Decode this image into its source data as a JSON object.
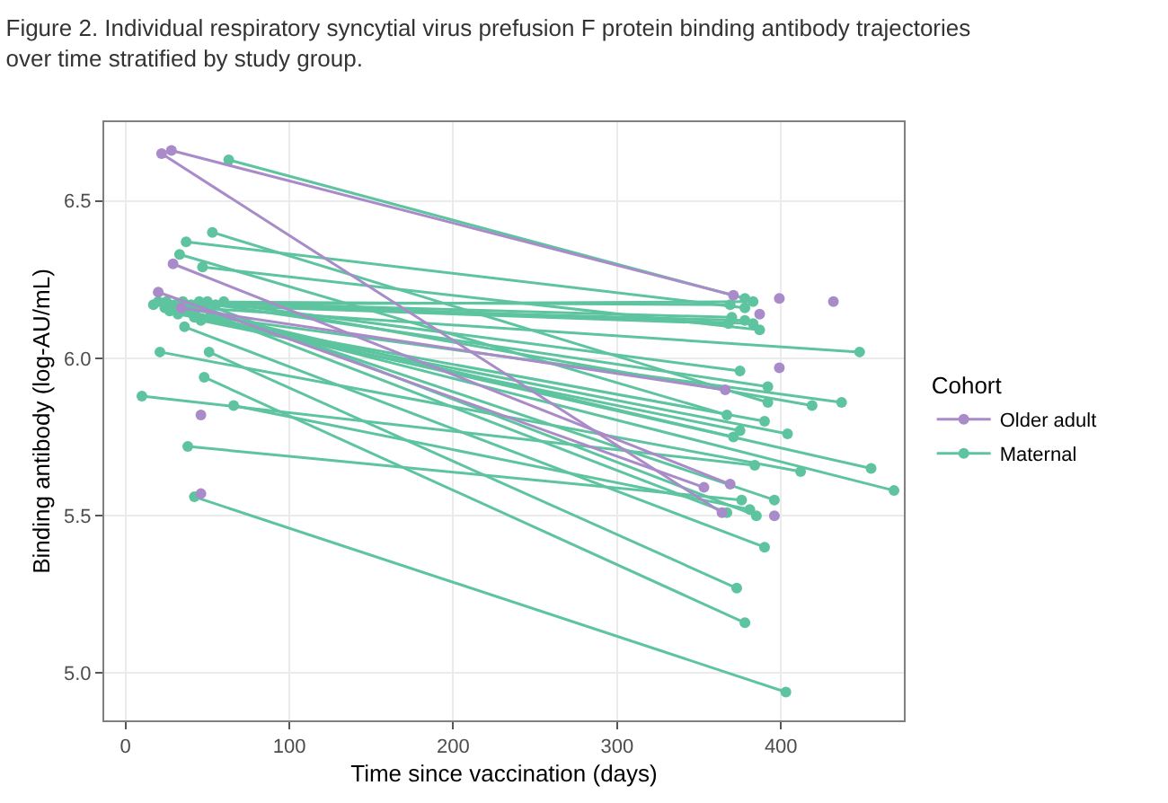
{
  "chart_data": {
    "type": "line",
    "title": "Figure 2. Individual respiratory syncytial virus prefusion F protein binding antibody trajectories\nover time stratified by study group.",
    "xlabel": "Time since vaccination (days)",
    "ylabel": "Binding antibody (log-AU/mL)",
    "legend_title": "Cohort",
    "xlim": [
      -13,
      475
    ],
    "ylim": [
      4.85,
      6.75
    ],
    "xticks": [
      0,
      100,
      200,
      300,
      400
    ],
    "yticks": [
      {
        "value": 5,
        "label": "5.0"
      },
      {
        "value": 5.5,
        "label": "5.5"
      },
      {
        "value": 6,
        "label": "6.0"
      },
      {
        "value": 6.5,
        "label": "6.5"
      }
    ],
    "grid": true,
    "legend": "right",
    "marker": "circle",
    "line_style": "solid",
    "series": [
      {
        "name": "Older adult",
        "color": "#a98bc9",
        "x": [
          22,
          364,
          null,
          28,
          371,
          null,
          29,
          369,
          null,
          20,
          353,
          null,
          34,
          366,
          null,
          46,
          null,
          46,
          null,
          399,
          null,
          432,
          null,
          387,
          null,
          399,
          null,
          396
        ],
        "values": [
          6.65,
          5.51,
          null,
          6.66,
          6.2,
          null,
          6.3,
          5.6,
          null,
          6.21,
          5.59,
          null,
          6.16,
          5.9,
          null,
          5.82,
          null,
          5.57,
          null,
          6.19,
          null,
          6.18,
          null,
          6.14,
          null,
          5.97,
          null,
          5.5
        ]
      },
      {
        "name": "Maternal",
        "color": "#5ec4a0",
        "x": [
          63,
          378,
          null,
          53,
          392,
          null,
          37,
          378,
          null,
          33,
          367,
          null,
          47,
          387,
          null,
          17,
          383,
          null,
          20,
          369,
          null,
          25,
          370,
          null,
          30,
          378,
          null,
          35,
          383,
          null,
          40,
          368,
          null,
          44,
          448,
          null,
          50,
          375,
          null,
          55,
          392,
          null,
          60,
          419,
          null,
          27,
          437,
          null,
          32,
          390,
          null,
          42,
          404,
          null,
          46,
          375,
          null,
          52,
          371,
          null,
          24,
          455,
          null,
          38,
          469,
          null,
          48,
          396,
          null,
          57,
          367,
          null,
          36,
          390,
          null,
          21,
          412,
          null,
          51,
          373,
          null,
          48,
          378,
          null,
          10,
          384,
          null,
          66,
          381,
          null,
          38,
          376,
          null,
          42,
          403,
          null,
          45,
          385
        ],
        "values": [
          6.63,
          6.19,
          null,
          6.4,
          5.86,
          null,
          6.37,
          6.16,
          null,
          6.33,
          5.82,
          null,
          6.29,
          6.09,
          null,
          6.17,
          6.18,
          null,
          6.18,
          6.17,
          null,
          6.18,
          6.13,
          null,
          6.17,
          6.12,
          null,
          6.18,
          6.11,
          null,
          6.17,
          6.11,
          null,
          6.16,
          6.02,
          null,
          6.18,
          5.96,
          null,
          6.17,
          5.91,
          null,
          6.18,
          5.85,
          null,
          6.15,
          5.86,
          null,
          6.14,
          5.8,
          null,
          6.13,
          5.76,
          null,
          6.12,
          5.77,
          null,
          6.14,
          5.75,
          null,
          6.16,
          5.65,
          null,
          6.15,
          5.58,
          null,
          6.16,
          5.55,
          null,
          6.13,
          5.51,
          null,
          6.1,
          5.4,
          null,
          6.02,
          5.64,
          null,
          6.02,
          5.27,
          null,
          5.94,
          5.16,
          null,
          5.88,
          5.66,
          null,
          5.85,
          5.52,
          null,
          5.72,
          5.55,
          null,
          5.56,
          4.94,
          null,
          6.18,
          5.5
        ]
      }
    ]
  }
}
